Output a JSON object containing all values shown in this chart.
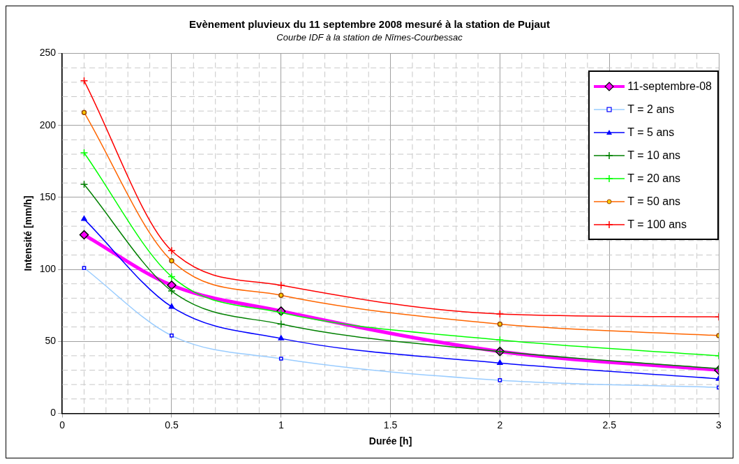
{
  "chart_data": {
    "type": "line",
    "title": "Evènement pluvieux du 11 septembre 2008 mesuré à la station de Pujaut",
    "subtitle": "Courbe IDF à la station de Nîmes-Courbessac",
    "xlabel": "Durée [h]",
    "ylabel": "Intensité [mm/h]",
    "x": [
      0.1,
      0.5,
      1,
      2,
      3
    ],
    "series": [
      {
        "name": "11-septembre-08",
        "color": "#ff00ff",
        "marker": "diamond",
        "values": [
          124,
          89,
          71,
          43,
          30
        ]
      },
      {
        "name": "T = 2 ans",
        "color": "#99ccff",
        "marker": "square",
        "values": [
          101,
          54,
          38,
          23,
          18
        ]
      },
      {
        "name": "T = 5 ans",
        "color": "#0000ff",
        "marker": "triangle",
        "values": [
          135,
          74,
          52,
          35,
          24
        ]
      },
      {
        "name": "T = 10 ans",
        "color": "#008000",
        "marker": "cross",
        "values": [
          159,
          85,
          62,
          43,
          31
        ]
      },
      {
        "name": "T = 20 ans",
        "color": "#00ff00",
        "marker": "cross",
        "values": [
          181,
          95,
          70,
          51,
          40
        ]
      },
      {
        "name": "T = 50 ans",
        "color": "#ff6600",
        "marker": "circle",
        "values": [
          209,
          106,
          82,
          62,
          54
        ]
      },
      {
        "name": "T = 100 ans",
        "color": "#ff0000",
        "marker": "cross",
        "values": [
          231,
          113,
          89,
          69,
          67
        ]
      }
    ],
    "xlim": [
      0,
      3
    ],
    "xticks": [
      0,
      0.5,
      1,
      1.5,
      2,
      2.5,
      3
    ],
    "ylim": [
      0,
      250
    ],
    "yticks": [
      0,
      50,
      100,
      150,
      200,
      250
    ],
    "grid": true,
    "legend": "top right"
  }
}
